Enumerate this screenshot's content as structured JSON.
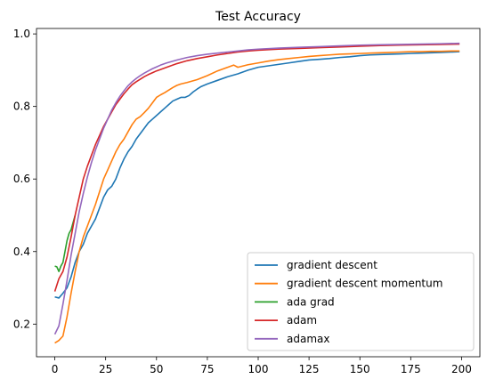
{
  "chart_data": {
    "type": "line",
    "title": "Test Accuracy",
    "xlabel": "",
    "ylabel": "",
    "xlim": [
      -9,
      209
    ],
    "ylim": [
      0.11,
      1.015
    ],
    "xticks": [
      0,
      25,
      50,
      75,
      100,
      125,
      150,
      175,
      200
    ],
    "yticks": [
      0.2,
      0.4,
      0.6,
      0.8,
      1.0
    ],
    "ytick_labels": [
      "0.2",
      "0.4",
      "0.6",
      "0.8",
      "1.0"
    ],
    "grid": false,
    "legend_position": "lower-right",
    "series": [
      {
        "name": "gradient descent",
        "color": "#1f77b4",
        "points": [
          [
            0,
            0.275
          ],
          [
            2,
            0.272
          ],
          [
            4,
            0.285
          ],
          [
            6,
            0.3
          ],
          [
            8,
            0.33
          ],
          [
            10,
            0.37
          ],
          [
            12,
            0.4
          ],
          [
            14,
            0.42
          ],
          [
            16,
            0.45
          ],
          [
            18,
            0.47
          ],
          [
            20,
            0.49
          ],
          [
            22,
            0.52
          ],
          [
            24,
            0.55
          ],
          [
            26,
            0.57
          ],
          [
            28,
            0.58
          ],
          [
            30,
            0.6
          ],
          [
            32,
            0.63
          ],
          [
            34,
            0.655
          ],
          [
            36,
            0.675
          ],
          [
            38,
            0.69
          ],
          [
            40,
            0.71
          ],
          [
            42,
            0.725
          ],
          [
            44,
            0.74
          ],
          [
            46,
            0.755
          ],
          [
            48,
            0.765
          ],
          [
            50,
            0.775
          ],
          [
            52,
            0.785
          ],
          [
            54,
            0.795
          ],
          [
            56,
            0.805
          ],
          [
            58,
            0.815
          ],
          [
            60,
            0.82
          ],
          [
            62,
            0.825
          ],
          [
            64,
            0.825
          ],
          [
            66,
            0.83
          ],
          [
            68,
            0.84
          ],
          [
            70,
            0.848
          ],
          [
            72,
            0.855
          ],
          [
            75,
            0.862
          ],
          [
            80,
            0.872
          ],
          [
            85,
            0.882
          ],
          [
            90,
            0.89
          ],
          [
            95,
            0.9
          ],
          [
            100,
            0.908
          ],
          [
            105,
            0.912
          ],
          [
            110,
            0.916
          ],
          [
            115,
            0.92
          ],
          [
            120,
            0.924
          ],
          [
            125,
            0.928
          ],
          [
            130,
            0.93
          ],
          [
            135,
            0.932
          ],
          [
            140,
            0.935
          ],
          [
            145,
            0.937
          ],
          [
            150,
            0.94
          ],
          [
            155,
            0.942
          ],
          [
            160,
            0.943
          ],
          [
            165,
            0.944
          ],
          [
            170,
            0.945
          ],
          [
            175,
            0.946
          ],
          [
            180,
            0.947
          ],
          [
            185,
            0.948
          ],
          [
            190,
            0.949
          ],
          [
            195,
            0.95
          ],
          [
            199,
            0.951
          ]
        ]
      },
      {
        "name": "gradient descent momentum",
        "color": "#ff7f0e",
        "points": [
          [
            0,
            0.148
          ],
          [
            2,
            0.155
          ],
          [
            4,
            0.167
          ],
          [
            6,
            0.22
          ],
          [
            8,
            0.285
          ],
          [
            10,
            0.345
          ],
          [
            12,
            0.4
          ],
          [
            14,
            0.44
          ],
          [
            16,
            0.47
          ],
          [
            18,
            0.5
          ],
          [
            20,
            0.53
          ],
          [
            22,
            0.565
          ],
          [
            24,
            0.6
          ],
          [
            26,
            0.625
          ],
          [
            28,
            0.65
          ],
          [
            30,
            0.675
          ],
          [
            32,
            0.695
          ],
          [
            34,
            0.71
          ],
          [
            36,
            0.73
          ],
          [
            38,
            0.75
          ],
          [
            40,
            0.765
          ],
          [
            42,
            0.772
          ],
          [
            44,
            0.783
          ],
          [
            46,
            0.795
          ],
          [
            48,
            0.81
          ],
          [
            50,
            0.825
          ],
          [
            52,
            0.832
          ],
          [
            54,
            0.838
          ],
          [
            56,
            0.845
          ],
          [
            58,
            0.852
          ],
          [
            60,
            0.858
          ],
          [
            62,
            0.862
          ],
          [
            65,
            0.866
          ],
          [
            70,
            0.874
          ],
          [
            75,
            0.885
          ],
          [
            80,
            0.898
          ],
          [
            85,
            0.908
          ],
          [
            88,
            0.914
          ],
          [
            90,
            0.908
          ],
          [
            95,
            0.915
          ],
          [
            100,
            0.92
          ],
          [
            105,
            0.925
          ],
          [
            110,
            0.929
          ],
          [
            115,
            0.932
          ],
          [
            120,
            0.935
          ],
          [
            125,
            0.938
          ],
          [
            130,
            0.94
          ],
          [
            135,
            0.942
          ],
          [
            140,
            0.944
          ],
          [
            145,
            0.945
          ],
          [
            150,
            0.946
          ],
          [
            155,
            0.947
          ],
          [
            160,
            0.948
          ],
          [
            165,
            0.949
          ],
          [
            170,
            0.95
          ],
          [
            175,
            0.951
          ],
          [
            180,
            0.951
          ],
          [
            185,
            0.952
          ],
          [
            190,
            0.952
          ],
          [
            195,
            0.953
          ],
          [
            199,
            0.953
          ]
        ]
      },
      {
        "name": "ada grad",
        "color": "#2ca02c",
        "points": [
          [
            0,
            0.36
          ],
          [
            1,
            0.358
          ],
          [
            2,
            0.345
          ],
          [
            3,
            0.36
          ],
          [
            4,
            0.37
          ],
          [
            5,
            0.4
          ],
          [
            6,
            0.43
          ],
          [
            7,
            0.45
          ],
          [
            8,
            0.46
          ],
          [
            9,
            0.48
          ],
          [
            10,
            0.5
          ]
        ]
      },
      {
        "name": "adam",
        "color": "#d62728",
        "points": [
          [
            0,
            0.29
          ],
          [
            2,
            0.325
          ],
          [
            4,
            0.345
          ],
          [
            6,
            0.385
          ],
          [
            8,
            0.44
          ],
          [
            10,
            0.5
          ],
          [
            12,
            0.55
          ],
          [
            14,
            0.6
          ],
          [
            16,
            0.635
          ],
          [
            18,
            0.665
          ],
          [
            20,
            0.695
          ],
          [
            22,
            0.72
          ],
          [
            24,
            0.745
          ],
          [
            26,
            0.765
          ],
          [
            28,
            0.785
          ],
          [
            30,
            0.805
          ],
          [
            32,
            0.82
          ],
          [
            34,
            0.835
          ],
          [
            36,
            0.848
          ],
          [
            38,
            0.86
          ],
          [
            40,
            0.868
          ],
          [
            42,
            0.875
          ],
          [
            44,
            0.882
          ],
          [
            46,
            0.888
          ],
          [
            48,
            0.893
          ],
          [
            50,
            0.898
          ],
          [
            52,
            0.902
          ],
          [
            55,
            0.908
          ],
          [
            60,
            0.918
          ],
          [
            65,
            0.926
          ],
          [
            70,
            0.932
          ],
          [
            75,
            0.937
          ],
          [
            80,
            0.942
          ],
          [
            85,
            0.946
          ],
          [
            90,
            0.95
          ],
          [
            95,
            0.953
          ],
          [
            100,
            0.955
          ],
          [
            110,
            0.958
          ],
          [
            120,
            0.96
          ],
          [
            130,
            0.962
          ],
          [
            140,
            0.964
          ],
          [
            150,
            0.966
          ],
          [
            160,
            0.968
          ],
          [
            170,
            0.969
          ],
          [
            180,
            0.97
          ],
          [
            190,
            0.971
          ],
          [
            199,
            0.972
          ]
        ]
      },
      {
        "name": "adamax",
        "color": "#9467bd",
        "points": [
          [
            0,
            0.172
          ],
          [
            2,
            0.195
          ],
          [
            4,
            0.255
          ],
          [
            6,
            0.32
          ],
          [
            8,
            0.39
          ],
          [
            10,
            0.45
          ],
          [
            12,
            0.51
          ],
          [
            14,
            0.56
          ],
          [
            16,
            0.605
          ],
          [
            18,
            0.645
          ],
          [
            20,
            0.68
          ],
          [
            22,
            0.71
          ],
          [
            24,
            0.74
          ],
          [
            26,
            0.765
          ],
          [
            28,
            0.79
          ],
          [
            30,
            0.81
          ],
          [
            32,
            0.828
          ],
          [
            34,
            0.843
          ],
          [
            36,
            0.857
          ],
          [
            38,
            0.868
          ],
          [
            40,
            0.877
          ],
          [
            42,
            0.885
          ],
          [
            44,
            0.892
          ],
          [
            46,
            0.898
          ],
          [
            48,
            0.904
          ],
          [
            50,
            0.909
          ],
          [
            52,
            0.914
          ],
          [
            55,
            0.92
          ],
          [
            60,
            0.928
          ],
          [
            65,
            0.935
          ],
          [
            70,
            0.94
          ],
          [
            75,
            0.944
          ],
          [
            80,
            0.947
          ],
          [
            85,
            0.95
          ],
          [
            90,
            0.953
          ],
          [
            95,
            0.956
          ],
          [
            100,
            0.958
          ],
          [
            110,
            0.961
          ],
          [
            120,
            0.963
          ],
          [
            130,
            0.965
          ],
          [
            140,
            0.967
          ],
          [
            150,
            0.969
          ],
          [
            160,
            0.97
          ],
          [
            170,
            0.971
          ],
          [
            180,
            0.972
          ],
          [
            190,
            0.973
          ],
          [
            199,
            0.974
          ]
        ]
      }
    ]
  }
}
